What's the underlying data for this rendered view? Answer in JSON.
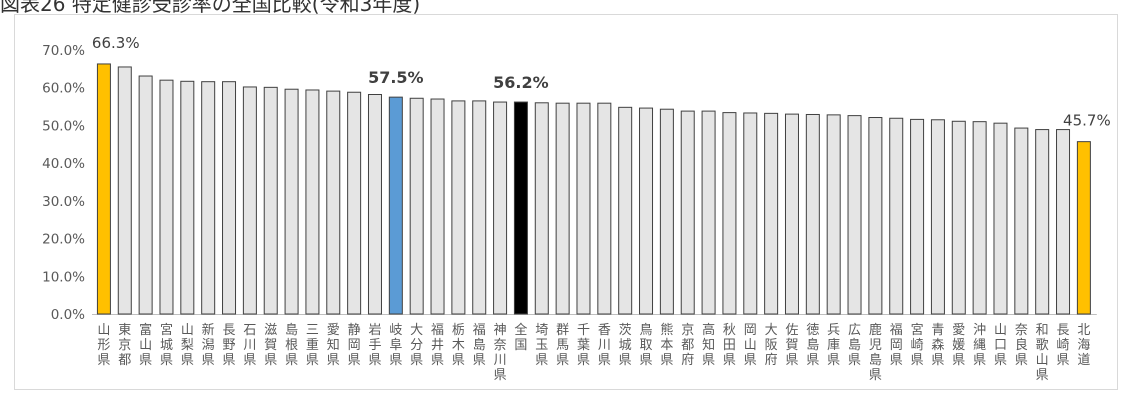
{
  "title_visible": "図表26 特定健診受診率の全国比較(令和3年度)",
  "colors": {
    "bar_default": "#e5e5e5",
    "bar_highlight_top_bottom": "#ffc000",
    "bar_gifu": "#5b9bd5",
    "bar_national": "#000000",
    "bar_stroke": "#404040",
    "axis": "#bfbfbf",
    "text": "#595959",
    "data_label": "#404040"
  },
  "chart_data": {
    "type": "bar",
    "ylim": [
      0,
      70
    ],
    "y_ticks": [
      "0.0%",
      "10.0%",
      "20.0%",
      "30.0%",
      "40.0%",
      "50.0%",
      "60.0%",
      "70.0%"
    ],
    "y_tick_values": [
      0,
      10,
      20,
      30,
      40,
      50,
      60,
      70
    ],
    "grid": false,
    "legend": "none",
    "categories": [
      "山形県",
      "東京都",
      "富山県",
      "宮城県",
      "山梨県",
      "新潟県",
      "長野県",
      "石川県",
      "滋賀県",
      "島根県",
      "三重県",
      "愛知県",
      "静岡県",
      "岩手県",
      "岐阜県",
      "大分県",
      "福井県",
      "栃木県",
      "福島県",
      "神奈川県",
      "全国",
      "埼玉県",
      "群馬県",
      "千葉県",
      "香川県",
      "茨城県",
      "鳥取県",
      "熊本県",
      "京都府",
      "高知県",
      "秋田県",
      "岡山県",
      "大阪府",
      "佐賀県",
      "徳島県",
      "兵庫県",
      "広島県",
      "鹿児島県",
      "福岡県",
      "宮崎県",
      "青森県",
      "愛媛県",
      "沖縄県",
      "山口県",
      "奈良県",
      "和歌山県",
      "長崎県",
      "北海道"
    ],
    "values": [
      66.3,
      65.5,
      63.1,
      62.0,
      61.7,
      61.6,
      61.6,
      60.2,
      60.1,
      59.6,
      59.4,
      59.1,
      58.8,
      58.2,
      57.5,
      57.2,
      57.0,
      56.5,
      56.5,
      56.2,
      56.2,
      56.0,
      55.9,
      55.9,
      55.9,
      54.8,
      54.6,
      54.3,
      53.8,
      53.8,
      53.4,
      53.3,
      53.2,
      53.0,
      52.9,
      52.8,
      52.6,
      52.1,
      51.9,
      51.6,
      51.5,
      51.1,
      51.0,
      50.6,
      49.3,
      48.9,
      48.9,
      45.7
    ],
    "highlight": [
      "top",
      "",
      "",
      "",
      "",
      "",
      "",
      "",
      "",
      "",
      "",
      "",
      "",
      "",
      "gifu",
      "",
      "",
      "",
      "",
      "",
      "national",
      "",
      "",
      "",
      "",
      "",
      "",
      "",
      "",
      "",
      "",
      "",
      "",
      "",
      "",
      "",
      "",
      "",
      "",
      "",
      "",
      "",
      "",
      "",
      "",
      "",
      "",
      "bottom"
    ],
    "data_labels": {
      "0": "66.3%",
      "14": "57.5%",
      "20": "56.2%",
      "47": "45.7%"
    }
  }
}
